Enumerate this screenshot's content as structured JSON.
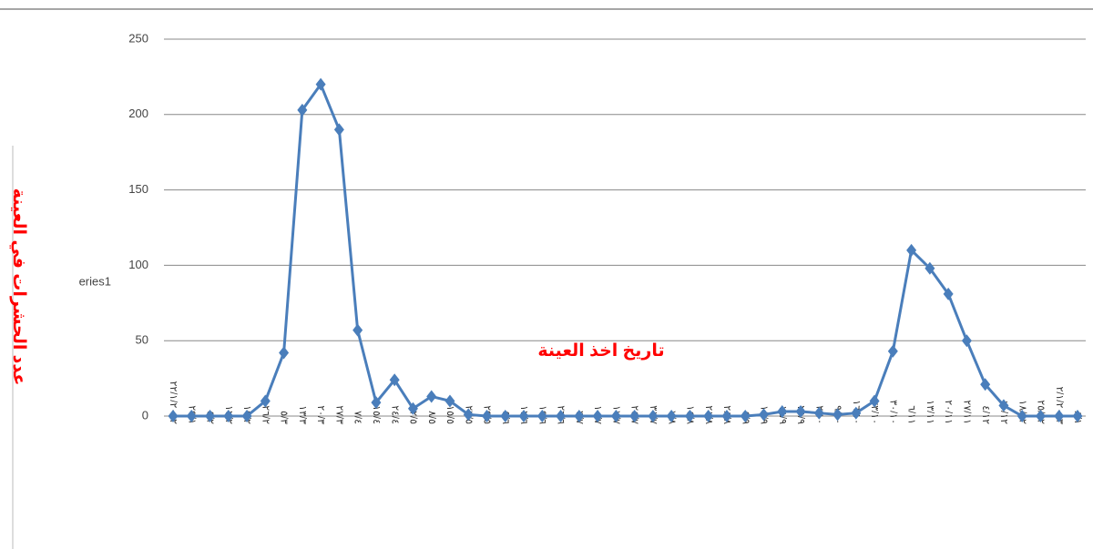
{
  "chart_data": {
    "type": "line",
    "x_label": "تاريخ اخذ العينة",
    "y_label": "عدد الحشرات في العينة",
    "categories": [
      "٢٢/١/٢٠١٢",
      "٢٩/١",
      "٥/٢",
      "١٢/٢",
      "١٩/٢",
      "٢٦/٢",
      "٥/٣",
      "١٣/٣",
      "٢٠/٣",
      "٢٧/٣",
      "٧/٤",
      "١٥/٤",
      "٢٤/٤",
      "٢/٥",
      "٨/٥",
      "١٥/٥",
      "٢٢/٥",
      "٢٩/٥",
      "٥/٦",
      "١٢/٦",
      "١٩/٦",
      "٢٦/٦",
      "٣/٧",
      "١٠/٧",
      "١٧/٧",
      "٢٤/٧",
      "٣١/٧",
      "٧/٨",
      "١٤/٨",
      "٢١/٨",
      "٢٨/٨",
      "٤/٩",
      "١١/٩",
      "١٨/٩",
      "٢٥/٩",
      "٢/١٠",
      "٩/١٠",
      "١٦/١٠",
      "٢٣/١٠",
      "٣٠/١٠",
      "٦/١١",
      "١٣/١١",
      "٢٠/١١",
      "٢٧/١١",
      "٤/١٢",
      "١١/١٢",
      "١٨/١٢",
      "٢٥/١٢",
      "٢/١/٢٠١٣",
      "٨/١"
    ],
    "series": [
      {
        "name": "eries1",
        "color": "#4a7ebb",
        "values": [
          0,
          0,
          0,
          0,
          0,
          10,
          42,
          203,
          220,
          190,
          57,
          9,
          24,
          5,
          13,
          10,
          1,
          0,
          0,
          0,
          0,
          0,
          0,
          0,
          0,
          0,
          0,
          0,
          0,
          0,
          0,
          0,
          1,
          3,
          3,
          2,
          1,
          2,
          10,
          43,
          110,
          98,
          81,
          50,
          21,
          7,
          0,
          0,
          0,
          0
        ]
      }
    ],
    "ylim": [
      0,
      250
    ],
    "yticks": [
      0,
      50,
      100,
      150,
      200,
      250
    ],
    "grid": true
  }
}
